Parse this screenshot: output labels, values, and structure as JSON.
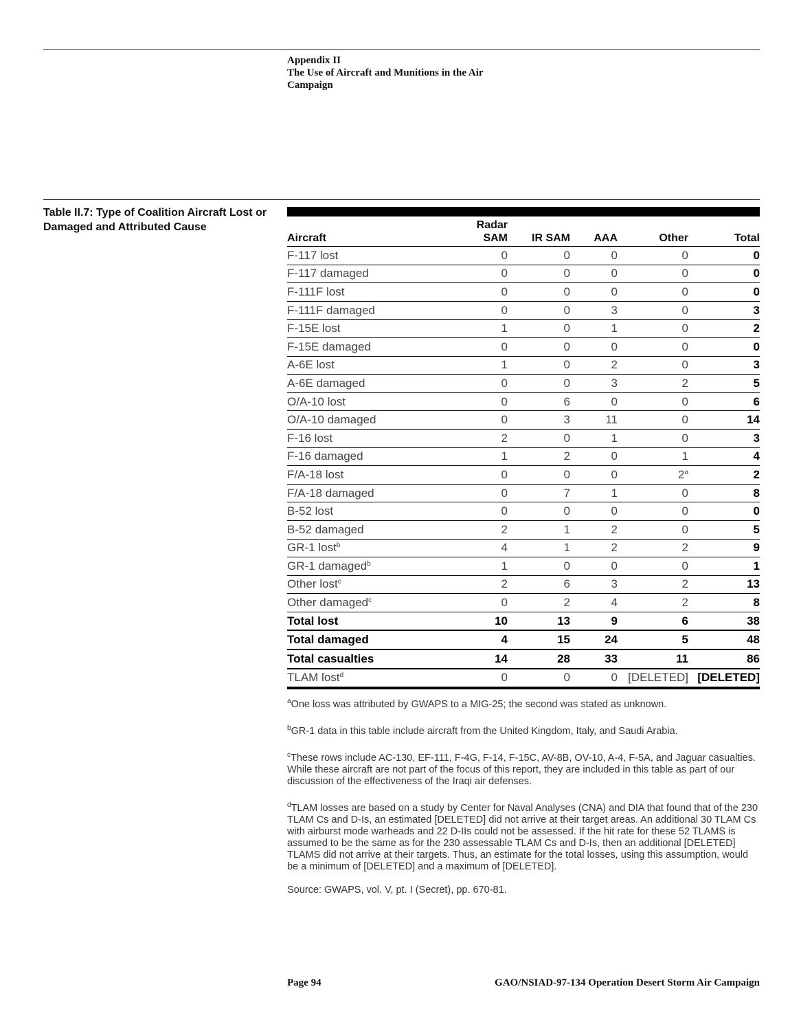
{
  "header": {
    "line1": "Appendix II",
    "line2": "The Use of Aircraft and Munitions in the Air",
    "line3": "Campaign"
  },
  "table": {
    "caption": "Table II.7: Type of Coalition Aircraft Lost or Damaged and Attributed Cause",
    "columns": {
      "aircraft": "Aircraft",
      "radar_top": "Radar",
      "radar_bottom": "SAM",
      "ir_sam": "IR SAM",
      "aaa": "AAA",
      "other": "Other",
      "total": "Total"
    },
    "rows": [
      {
        "label": "F-117 lost",
        "sup": "",
        "radar": "0",
        "ir": "0",
        "aaa": "0",
        "other": "0",
        "other_sup": "",
        "total": "0"
      },
      {
        "label": "F-117 damaged",
        "sup": "",
        "radar": "0",
        "ir": "0",
        "aaa": "0",
        "other": "0",
        "other_sup": "",
        "total": "0"
      },
      {
        "label": "F-111F lost",
        "sup": "",
        "radar": "0",
        "ir": "0",
        "aaa": "0",
        "other": "0",
        "other_sup": "",
        "total": "0"
      },
      {
        "label": "F-111F damaged",
        "sup": "",
        "radar": "0",
        "ir": "0",
        "aaa": "3",
        "other": "0",
        "other_sup": "",
        "total": "3"
      },
      {
        "label": "F-15E lost",
        "sup": "",
        "radar": "1",
        "ir": "0",
        "aaa": "1",
        "other": "0",
        "other_sup": "",
        "total": "2"
      },
      {
        "label": "F-15E damaged",
        "sup": "",
        "radar": "0",
        "ir": "0",
        "aaa": "0",
        "other": "0",
        "other_sup": "",
        "total": "0"
      },
      {
        "label": "A-6E lost",
        "sup": "",
        "radar": "1",
        "ir": "0",
        "aaa": "2",
        "other": "0",
        "other_sup": "",
        "total": "3"
      },
      {
        "label": "A-6E damaged",
        "sup": "",
        "radar": "0",
        "ir": "0",
        "aaa": "3",
        "other": "2",
        "other_sup": "",
        "total": "5"
      },
      {
        "label": "O/A-10 lost",
        "sup": "",
        "radar": "0",
        "ir": "6",
        "aaa": "0",
        "other": "0",
        "other_sup": "",
        "total": "6"
      },
      {
        "label": "O/A-10 damaged",
        "sup": "",
        "radar": "0",
        "ir": "3",
        "aaa": "11",
        "other": "0",
        "other_sup": "",
        "total": "14"
      },
      {
        "label": "F-16 lost",
        "sup": "",
        "radar": "2",
        "ir": "0",
        "aaa": "1",
        "other": "0",
        "other_sup": "",
        "total": "3"
      },
      {
        "label": "F-16 damaged",
        "sup": "",
        "radar": "1",
        "ir": "2",
        "aaa": "0",
        "other": "1",
        "other_sup": "",
        "total": "4"
      },
      {
        "label": "F/A-18 lost",
        "sup": "",
        "radar": "0",
        "ir": "0",
        "aaa": "0",
        "other": "2",
        "other_sup": "a",
        "total": "2"
      },
      {
        "label": "F/A-18 damaged",
        "sup": "",
        "radar": "0",
        "ir": "7",
        "aaa": "1",
        "other": "0",
        "other_sup": "",
        "total": "8"
      },
      {
        "label": "B-52 lost",
        "sup": "",
        "radar": "0",
        "ir": "0",
        "aaa": "0",
        "other": "0",
        "other_sup": "",
        "total": "0"
      },
      {
        "label": "B-52 damaged",
        "sup": "",
        "radar": "2",
        "ir": "1",
        "aaa": "2",
        "other": "0",
        "other_sup": "",
        "total": "5"
      },
      {
        "label": "GR-1 lost",
        "sup": "b",
        "radar": "4",
        "ir": "1",
        "aaa": "2",
        "other": "2",
        "other_sup": "",
        "total": "9"
      },
      {
        "label": "GR-1 damaged",
        "sup": "b",
        "radar": "1",
        "ir": "0",
        "aaa": "0",
        "other": "0",
        "other_sup": "",
        "total": "1"
      },
      {
        "label": "Other lost",
        "sup": "c",
        "radar": "2",
        "ir": "6",
        "aaa": "3",
        "other": "2",
        "other_sup": "",
        "total": "13"
      },
      {
        "label": "Other damaged",
        "sup": "c",
        "radar": "0",
        "ir": "2",
        "aaa": "4",
        "other": "2",
        "other_sup": "",
        "total": "8"
      },
      {
        "label": "Total lost",
        "sup": "",
        "radar": "10",
        "ir": "13",
        "aaa": "9",
        "other": "6",
        "other_sup": "",
        "total": "38",
        "bold": true
      },
      {
        "label": "Total damaged",
        "sup": "",
        "radar": "4",
        "ir": "15",
        "aaa": "24",
        "other": "5",
        "other_sup": "",
        "total": "48",
        "bold": true
      },
      {
        "label": "Total casualties",
        "sup": "",
        "radar": "14",
        "ir": "28",
        "aaa": "33",
        "other": "11",
        "other_sup": "",
        "total": "86",
        "bold": true
      },
      {
        "label": "TLAM lost",
        "sup": "d",
        "radar": "0",
        "ir": "0",
        "aaa": "0",
        "other": "[DELETED]",
        "other_sup": "",
        "total": "[DELETED]"
      }
    ]
  },
  "notes": [
    {
      "mark": "a",
      "text": "One loss was attributed by GWAPS to a MIG-25; the second was stated as unknown."
    },
    {
      "mark": "b",
      "text": "GR-1 data in this table include aircraft from the United Kingdom, Italy, and Saudi Arabia."
    },
    {
      "mark": "c",
      "text": "These rows include AC-130, EF-111, F-4G, F-14, F-15C, AV-8B, OV-10, A-4, F-5A, and Jaguar casualties. While these aircraft are not part of the focus of this report, they are included in this table as part of our discussion of the effectiveness of the Iraqi air defenses."
    },
    {
      "mark": "d",
      "text": "TLAM losses are based on a study by Center for Naval Analyses (CNA) and DIA that found that of the 230 TLAM Cs and D-Is, an estimated [DELETED] did not arrive at their target areas. An additional 30 TLAM Cs with airburst mode warheads and 22 D-IIs could not be assessed. If the hit rate for these 52 TLAMS is assumed to be the same as for the 230 assessable TLAM Cs and D-Is, then an additional [DELETED] TLAMS did not arrive at their targets. Thus, an estimate for the total losses, using this assumption, would be a minimum of [DELETED] and a maximum of [DELETED]."
    },
    {
      "mark": "",
      "text": "Source: GWAPS, vol. V, pt. I (Secret), pp. 670-81."
    }
  ],
  "footer": {
    "page": "Page 94",
    "report": "GAO/NSIAD-97-134 Operation Desert Storm Air Campaign"
  }
}
